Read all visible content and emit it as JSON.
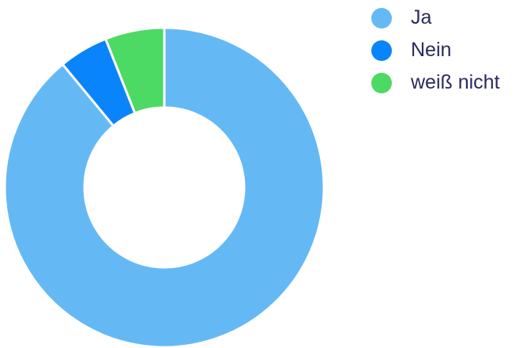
{
  "chart_data": {
    "type": "pie",
    "variant": "donut",
    "categories": [
      "Ja",
      "Nein",
      "weiß nicht"
    ],
    "values": [
      89,
      5,
      6
    ],
    "colors": [
      "#64b9f5",
      "#0a84fa",
      "#4cd964"
    ],
    "legend": {
      "position": "top-right",
      "items": [
        {
          "label": "Ja",
          "color": "#64b9f5"
        },
        {
          "label": "Nein",
          "color": "#0a84fa"
        },
        {
          "label": "weiß nicht",
          "color": "#4cd964"
        }
      ]
    }
  }
}
